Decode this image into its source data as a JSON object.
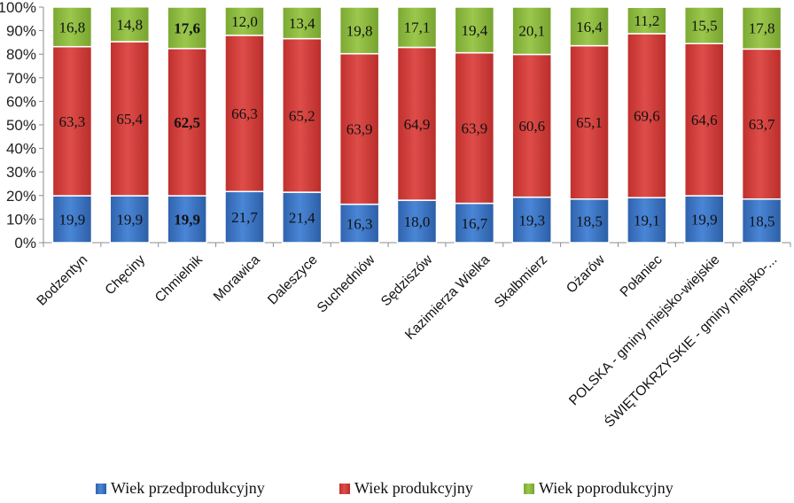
{
  "chart_data": {
    "type": "bar",
    "stacked": true,
    "percent": true,
    "categories": [
      "Bodzentyn",
      "Chęciny",
      "Chmielnik",
      "Morawica",
      "Daleszyce",
      "Suchedniów",
      "Sędziszów",
      "Kazimierza Wielka",
      "Skalbmierz",
      "Ożarów",
      "Połaniec",
      "POLSKA - gminy miejsko-wiejskie",
      "ŚWIĘTOKRZYSKIE - gminy miejsko-..."
    ],
    "series": [
      {
        "name": "Wiek przedprodukcyjny",
        "color": "#3a74c4",
        "values": [
          19.9,
          19.9,
          19.9,
          21.7,
          21.4,
          16.3,
          18.0,
          16.7,
          19.3,
          18.5,
          19.1,
          19.9,
          18.5
        ],
        "labels": [
          "19,9",
          "19,9",
          "19,9",
          "21,7",
          "21,4",
          "16,3",
          "18,0",
          "16,7",
          "19,3",
          "18,5",
          "19,1",
          "19,9",
          "18,5"
        ]
      },
      {
        "name": "Wiek produkcyjny",
        "color": "#d23b38",
        "values": [
          63.3,
          65.4,
          62.5,
          66.3,
          65.2,
          63.9,
          64.9,
          63.9,
          60.6,
          65.1,
          69.6,
          64.6,
          63.7
        ],
        "labels": [
          "63,3",
          "65,4",
          "62,5",
          "66,3",
          "65,2",
          "63,9",
          "64,9",
          "63,9",
          "60,6",
          "65,1",
          "69,6",
          "64,6",
          "63,7"
        ]
      },
      {
        "name": "Wiek poprodukcyjny",
        "color": "#8cb93e",
        "values": [
          16.8,
          14.8,
          17.6,
          12.0,
          13.4,
          19.8,
          17.1,
          19.4,
          20.1,
          16.4,
          11.2,
          15.5,
          17.8
        ],
        "labels": [
          "16,8",
          "14,8",
          "17,6",
          "12,0",
          "13,4",
          "19,8",
          "17,1",
          "19,4",
          "20,1",
          "16,4",
          "11,2",
          "15,5",
          "17,8"
        ]
      }
    ],
    "bold_category_index": 2,
    "ylim": [
      0,
      100
    ],
    "yticks": [
      "0%",
      "10%",
      "20%",
      "30%",
      "40%",
      "50%",
      "60%",
      "70%",
      "80%",
      "90%",
      "100%"
    ],
    "legend": "bottom",
    "grid": false
  }
}
